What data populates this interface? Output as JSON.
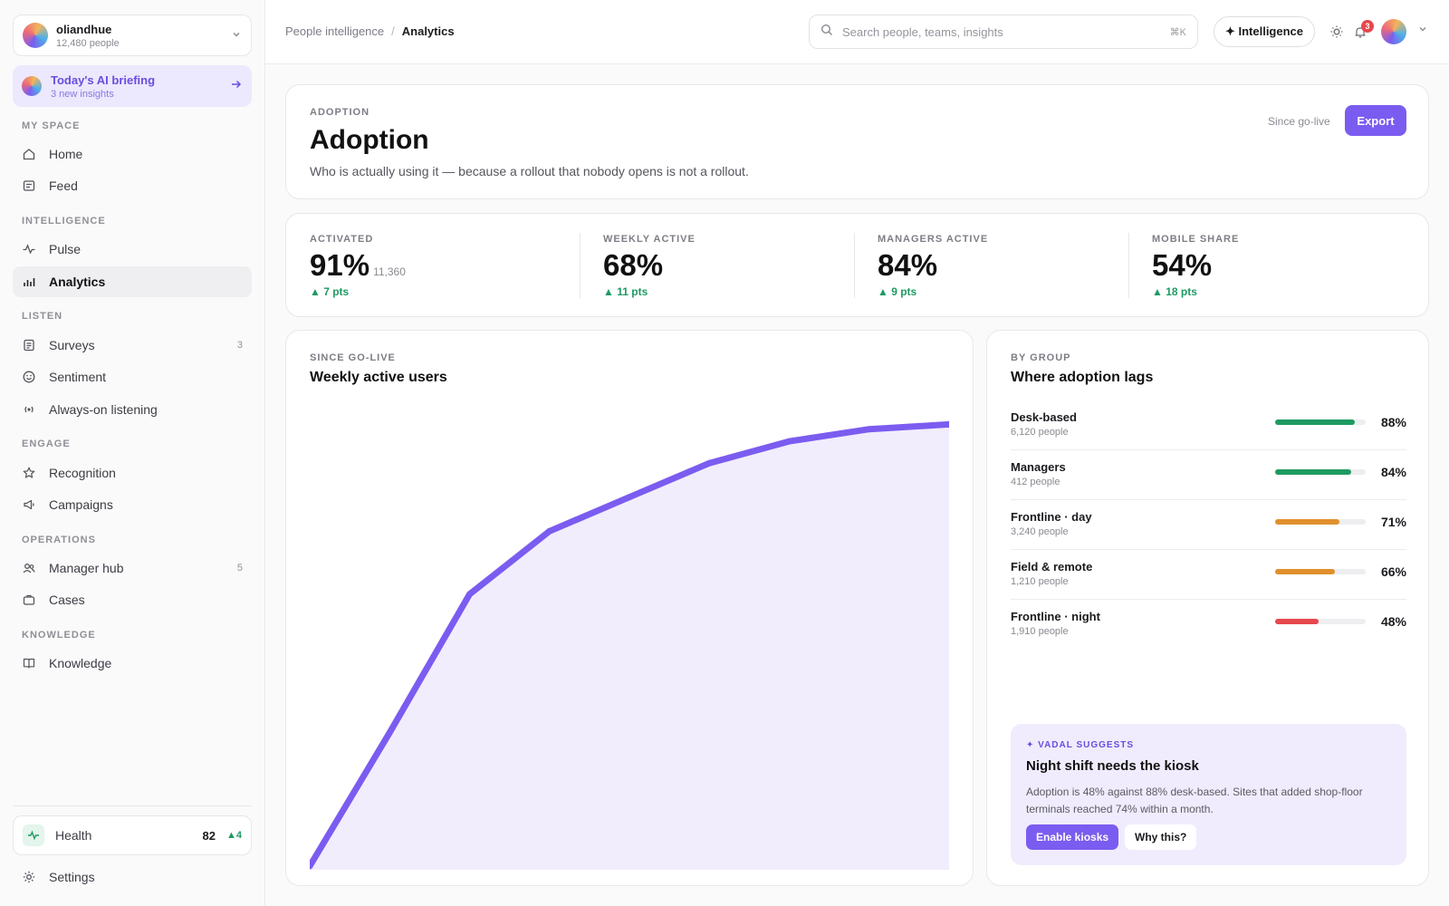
{
  "org": {
    "name": "oliandhue",
    "people": "12,480 people"
  },
  "briefing": {
    "title": "Today's AI briefing",
    "subtitle": "3 new insights"
  },
  "nav": {
    "sections": {
      "my_space": "MY SPACE",
      "intelligence": "INTELLIGENCE",
      "listen": "LISTEN",
      "engage": "ENGAGE",
      "operations": "OPERATIONS",
      "knowledge": "KNOWLEDGE"
    },
    "items": {
      "home": "Home",
      "feed": "Feed",
      "pulse": "Pulse",
      "analytics": "Analytics",
      "surveys": "Surveys",
      "surveys_count": "3",
      "sentiment": "Sentiment",
      "listening": "Always-on listening",
      "recognition": "Recognition",
      "campaigns": "Campaigns",
      "manager_hub": "Manager hub",
      "manager_hub_count": "5",
      "cases": "Cases",
      "knowledge": "Knowledge"
    },
    "active": "analytics"
  },
  "health": {
    "label": "Health",
    "score": "82",
    "delta": "4"
  },
  "settings": {
    "label": "Settings"
  },
  "topbar": {
    "breadcrumb_parent": "People intelligence",
    "breadcrumb_sep": "/",
    "breadcrumb_current": "Analytics",
    "search_placeholder": "Search people, teams, insights",
    "search_shortcut": "⌘K",
    "intelligence_label": "✦ Intelligence",
    "notification_count": "3"
  },
  "header": {
    "eyebrow": "ADOPTION",
    "title": "Adoption",
    "subtitle": "Who is actually using it — because a rollout that nobody opens is not a rollout.",
    "since": "Since go-live",
    "export_label": "Export"
  },
  "stats": [
    {
      "label": "ACTIVATED",
      "value": "91%",
      "sub": "11,360",
      "delta": "7 pts"
    },
    {
      "label": "WEEKLY ACTIVE",
      "value": "68%",
      "sub": "",
      "delta": "11 pts"
    },
    {
      "label": "MANAGERS ACTIVE",
      "value": "84%",
      "sub": "",
      "delta": "9 pts"
    },
    {
      "label": "MOBILE SHARE",
      "value": "54%",
      "sub": "",
      "delta": "18 pts"
    }
  ],
  "chart": {
    "eyebrow": "SINCE GO-LIVE",
    "title": "Weekly active users"
  },
  "chart_data": {
    "type": "area",
    "title": "Weekly active users",
    "x": [
      0,
      1,
      2,
      3,
      4,
      5,
      6,
      7,
      8
    ],
    "values": [
      0,
      27.5,
      56,
      69,
      76,
      83,
      87.5,
      90,
      91
    ],
    "ylim": [
      0,
      92
    ],
    "grid": false,
    "color": "#7b5cf0",
    "fill": "#f1edfd"
  },
  "groups": {
    "eyebrow": "BY GROUP",
    "title": "Where adoption lags",
    "rows": [
      {
        "name": "Desk-based",
        "people": "6,120 people",
        "pct": "88%",
        "value": 0.88,
        "color": "#1f9a62"
      },
      {
        "name": "Managers",
        "people": "412 people",
        "pct": "84%",
        "value": 0.84,
        "color": "#1f9a62"
      },
      {
        "name": "Frontline · day",
        "people": "3,240 people",
        "pct": "71%",
        "value": 0.71,
        "color": "#e0902d"
      },
      {
        "name": "Field & remote",
        "people": "1,210 people",
        "pct": "66%",
        "value": 0.66,
        "color": "#e0902d"
      },
      {
        "name": "Frontline · night",
        "people": "1,910 people",
        "pct": "48%",
        "value": 0.48,
        "color": "#e5484d"
      }
    ]
  },
  "suggestion": {
    "eyebrow": "✦ VADAL SUGGESTS",
    "title": "Night shift needs the kiosk",
    "body": "Adoption is 48% against 88% desk-based. Sites that added shop-floor terminals reached 74% within a month.",
    "primary": "Enable kiosks",
    "secondary": "Why this?"
  }
}
